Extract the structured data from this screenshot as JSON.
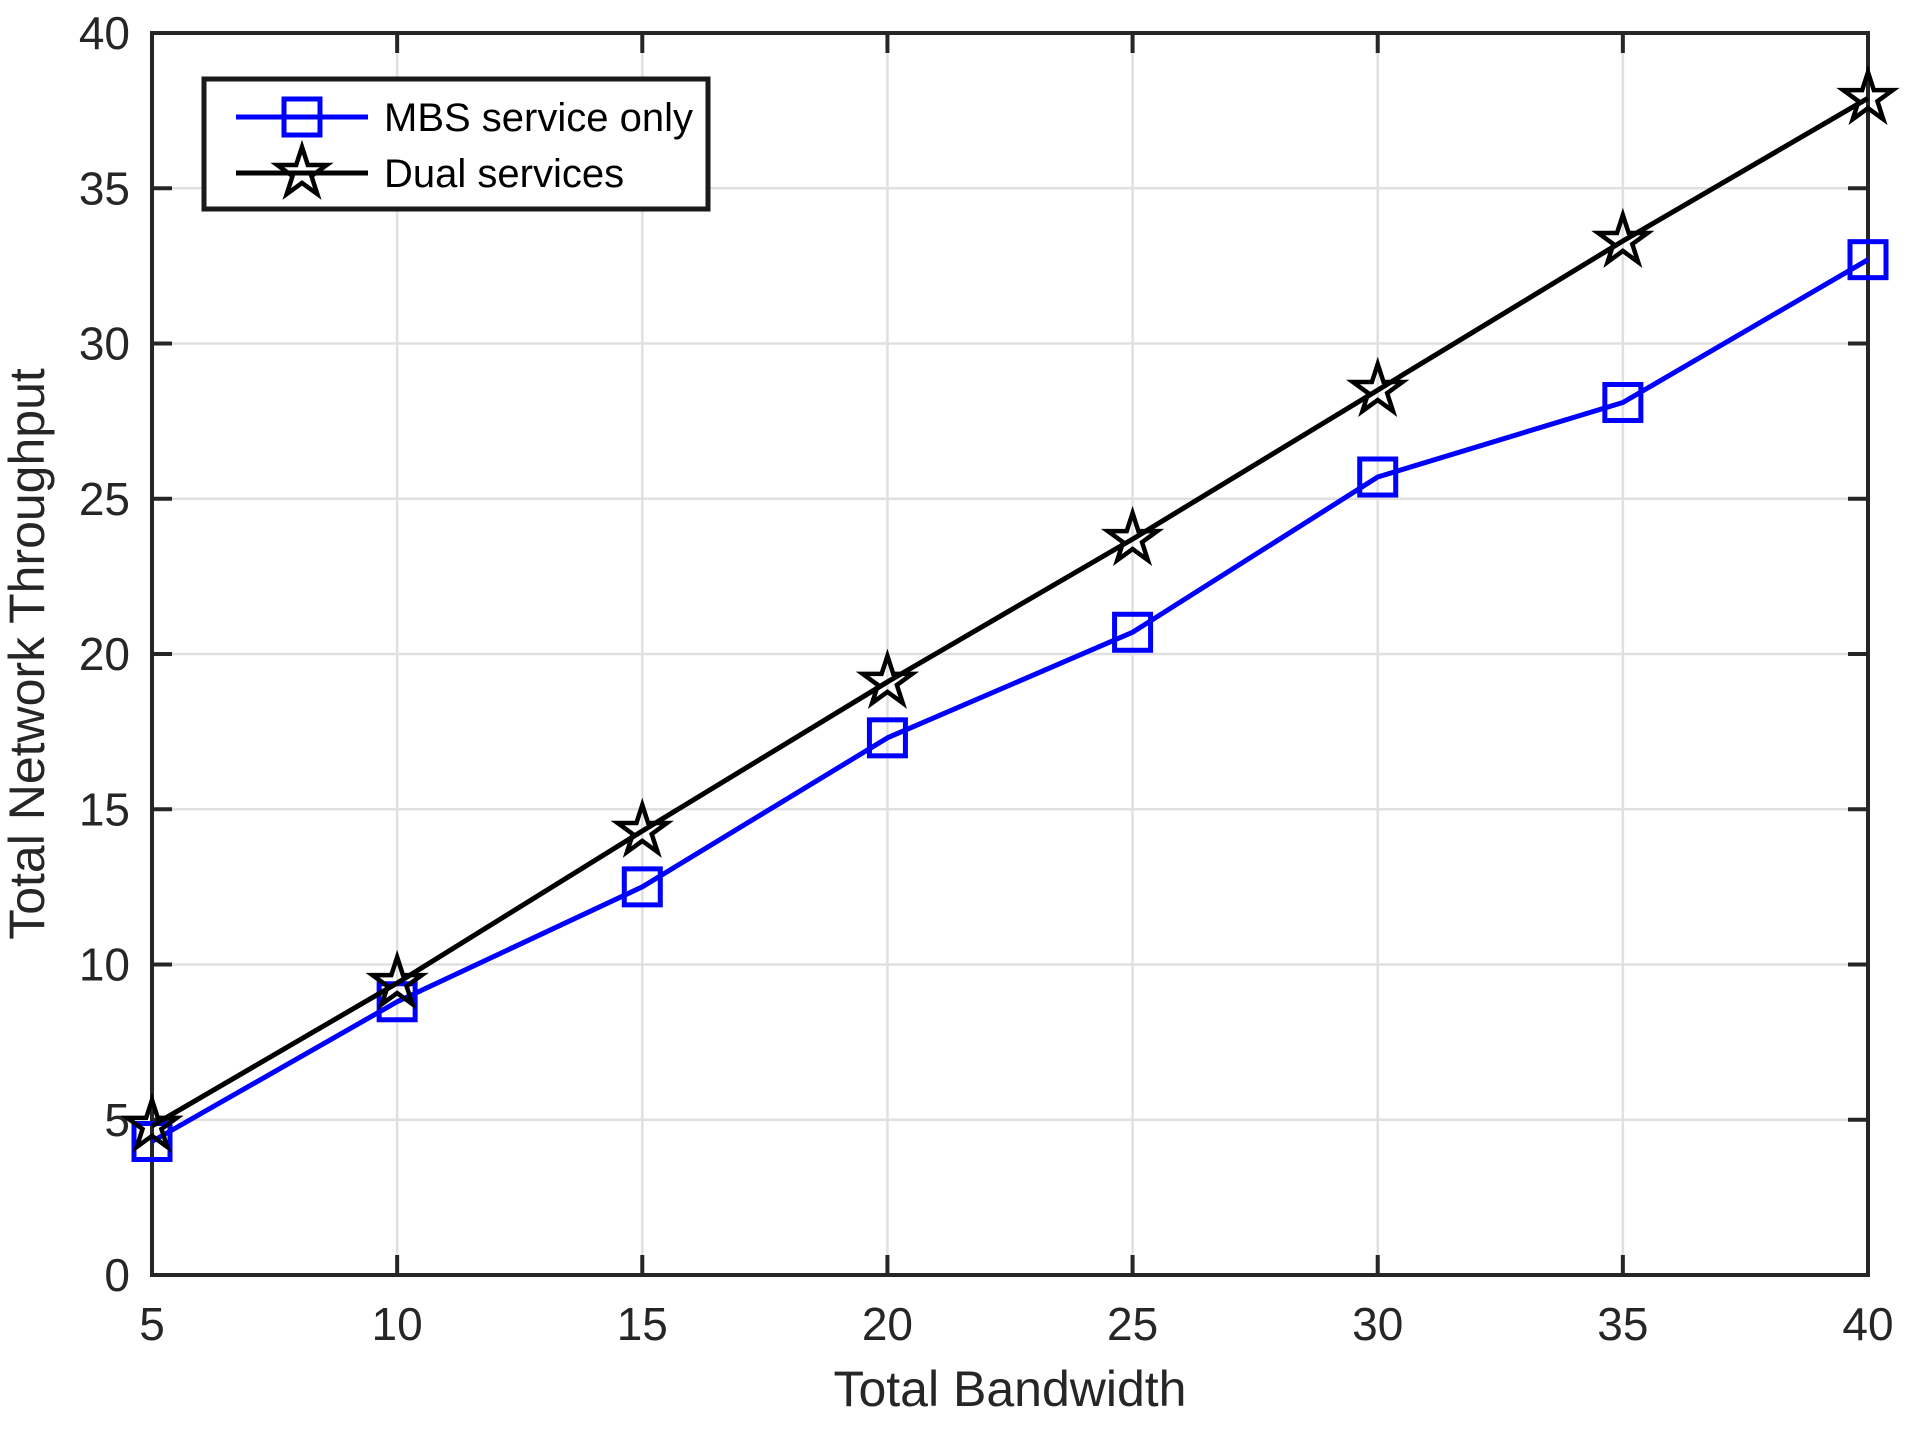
{
  "chart_data": {
    "type": "line",
    "title": "",
    "xlabel": "Total Bandwidth",
    "ylabel": "Total Network Throughput",
    "xlim": [
      5,
      40
    ],
    "ylim": [
      0,
      40
    ],
    "xticks": [
      5,
      10,
      15,
      20,
      25,
      30,
      35,
      40
    ],
    "yticks": [
      0,
      5,
      10,
      15,
      20,
      25,
      30,
      35,
      40
    ],
    "grid": true,
    "legend": {
      "position": "top-left",
      "entries": [
        "MBS service only",
        "Dual services"
      ]
    },
    "x": [
      5,
      10,
      15,
      20,
      25,
      30,
      35,
      40
    ],
    "series": [
      {
        "name": "MBS service only",
        "marker": "square",
        "color": "#0000FF",
        "values": [
          4.3,
          8.8,
          12.5,
          17.3,
          20.7,
          25.7,
          28.1,
          32.7
        ]
      },
      {
        "name": "Dual services",
        "marker": "pentagram",
        "color": "#000000",
        "values": [
          4.8,
          9.4,
          14.3,
          19.1,
          23.7,
          28.5,
          33.3,
          37.9
        ]
      }
    ],
    "colors": {
      "axis": "#262626",
      "grid": "#E0E0E0",
      "background": "#FFFFFF",
      "tick_label": "#262626",
      "legend_border": "#1A1A1A"
    }
  }
}
